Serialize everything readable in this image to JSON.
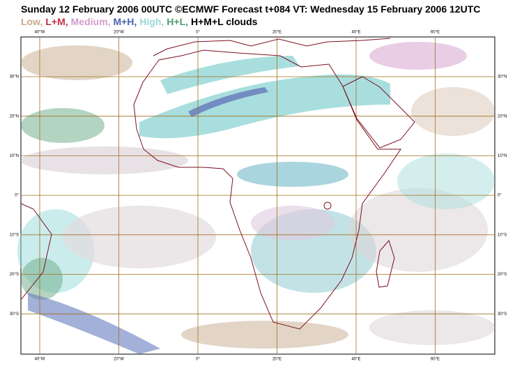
{
  "title": "Sunday 12 February 2006 00UTC ©ECMWF Forecast t+084 VT: Wednesday 15 February 2006 12UTC",
  "legend": [
    {
      "label": "Low,",
      "color": "#c8ab8e"
    },
    {
      "label": "L+M,",
      "color": "#c0304a"
    },
    {
      "label": "Medium,",
      "color": "#d49ccc"
    },
    {
      "label": "M+H,",
      "color": "#4a62b0"
    },
    {
      "label": "High,",
      "color": "#9ad8d8"
    },
    {
      "label": "H+L,",
      "color": "#4e9a70"
    },
    {
      "label": "H+M+L clouds",
      "color": "#000000"
    }
  ],
  "lon_labels": [
    "40°W",
    "20°W",
    "0°",
    "20°E",
    "40°E",
    "60°E"
  ],
  "lat_labels": [
    "30°N",
    "20°N",
    "10°N",
    "0°",
    "10°S",
    "20°S",
    "30°S"
  ]
}
